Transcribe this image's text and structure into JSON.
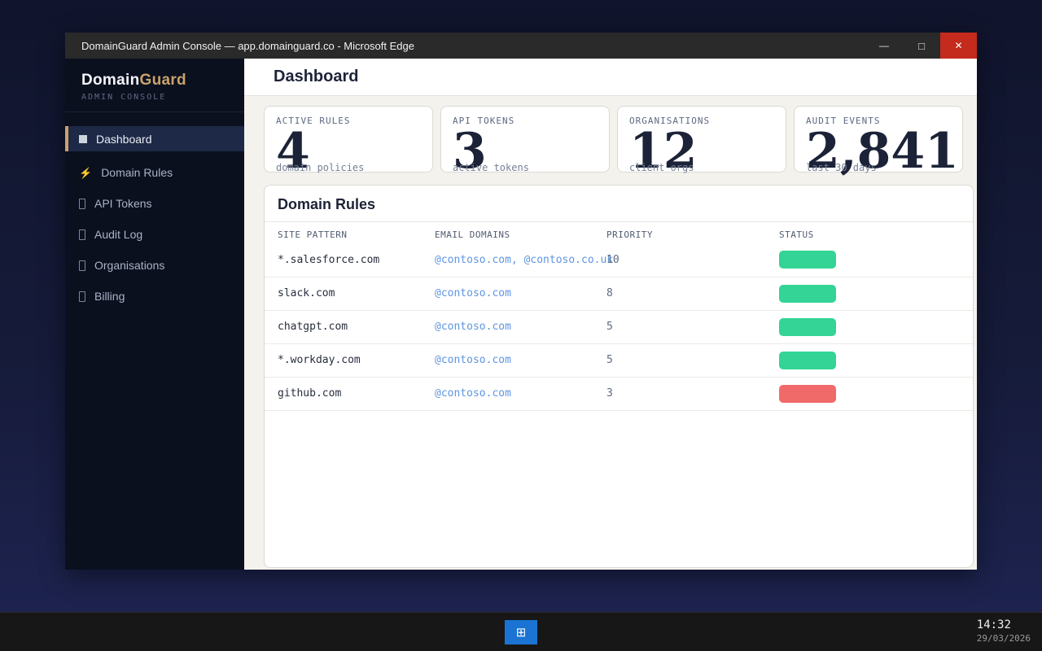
{
  "window": {
    "title": "DomainGuard Admin Console — app.domainguard.co - Microsoft Edge",
    "controls": {
      "minimize": "—",
      "maximize": "□",
      "close": "✕"
    }
  },
  "sidebar": {
    "brand_primary": "Domain",
    "brand_secondary": "Guard",
    "brand_subtitle": "ADMIN CONSOLE",
    "items": [
      {
        "label": "Dashboard",
        "icon": "square",
        "active": true
      },
      {
        "label": "Domain Rules",
        "icon": "lightning",
        "active": false
      },
      {
        "label": "API Tokens",
        "icon": "missing-glyph",
        "active": false
      },
      {
        "label": "Audit Log",
        "icon": "missing-glyph",
        "active": false
      },
      {
        "label": "Organisations",
        "icon": "missing-glyph",
        "active": false
      },
      {
        "label": "Billing",
        "icon": "missing-glyph",
        "active": false
      }
    ],
    "lightning_glyph": "⚡"
  },
  "main": {
    "page_title": "Dashboard",
    "stats": [
      {
        "label": "ACTIVE RULES",
        "value": "4",
        "caption": "domain policies"
      },
      {
        "label": "API TOKENS",
        "value": "3",
        "caption": "active tokens"
      },
      {
        "label": "ORGANISATIONS",
        "value": "12",
        "caption": "client orgs"
      },
      {
        "label": "AUDIT EVENTS",
        "value": "2,841",
        "caption": "last 30 days"
      }
    ],
    "panel": {
      "title": "Domain Rules",
      "columns": [
        "SITE PATTERN",
        "EMAIL DOMAINS",
        "PRIORITY",
        "STATUS"
      ],
      "rows": [
        {
          "site": "*.salesforce.com",
          "emails": "@contoso.com, @contoso.co.uk",
          "priority": "10",
          "status": "green"
        },
        {
          "site": "slack.com",
          "emails": "@contoso.com",
          "priority": "8",
          "status": "green"
        },
        {
          "site": "chatgpt.com",
          "emails": "@contoso.com",
          "priority": "5",
          "status": "green"
        },
        {
          "site": "*.workday.com",
          "emails": "@contoso.com",
          "priority": "5",
          "status": "green"
        },
        {
          "site": "github.com",
          "emails": "@contoso.com",
          "priority": "3",
          "status": "red"
        }
      ]
    }
  },
  "taskbar": {
    "app_button_glyph": "⊞",
    "clock_time": "14:32",
    "clock_date": "29/03/2026"
  },
  "colors": {
    "accent_gold": "#c9a26b",
    "status_green": "#33d495",
    "status_red": "#f16a6a",
    "close_red": "#c42b1c",
    "taskbar_blue": "#1b73d3",
    "email_blue": "#5e95e0"
  }
}
